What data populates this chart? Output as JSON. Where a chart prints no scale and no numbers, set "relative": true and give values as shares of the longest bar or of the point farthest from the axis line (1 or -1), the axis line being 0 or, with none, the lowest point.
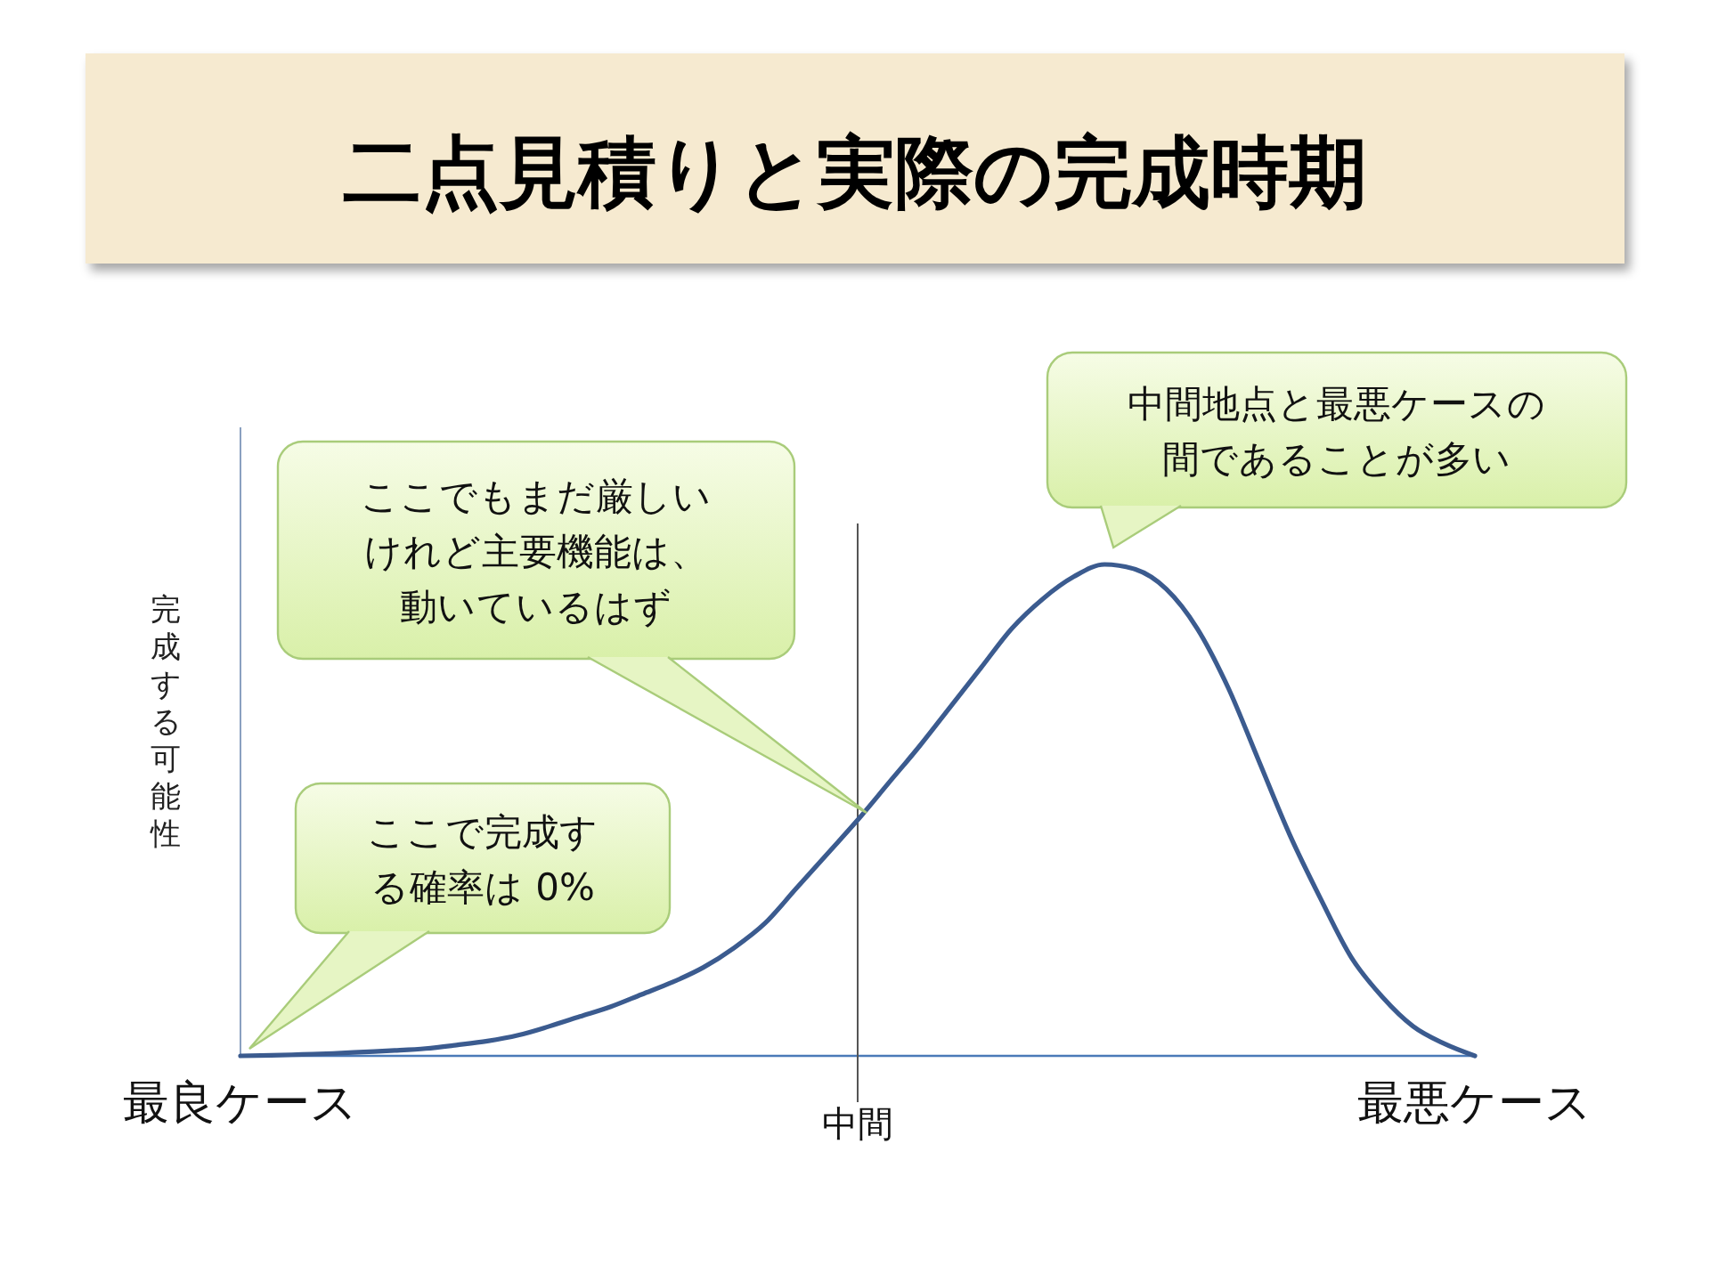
{
  "chart_data": {
    "type": "line",
    "relative": true,
    "title": "二点見積りと実際の完成時期",
    "ylabel": "完成する可能性",
    "categories": [
      "最良ケース",
      null,
      null,
      null,
      null,
      null,
      null,
      null,
      null,
      null,
      null,
      null,
      null,
      null,
      null,
      null,
      null,
      null,
      null,
      null,
      "中間",
      null,
      null,
      null,
      null,
      null,
      null,
      null,
      null,
      null,
      null,
      null,
      null,
      null,
      null,
      null,
      null,
      null,
      null,
      null,
      "最悪ケース"
    ],
    "series": [
      {
        "color": "#3b5b8f",
        "values": [
          0,
          0.001,
          0.003,
          0.005,
          0.008,
          0.011,
          0.015,
          0.022,
          0.03,
          0.042,
          0.06,
          0.08,
          0.1,
          0.125,
          0.15,
          0.18,
          0.22,
          0.27,
          0.34,
          0.41,
          0.48,
          0.555,
          0.63,
          0.71,
          0.79,
          0.87,
          0.93,
          0.975,
          1,
          0.99,
          0.95,
          0.87,
          0.75,
          0.6,
          0.45,
          0.32,
          0.2,
          0.12,
          0.06,
          0.025,
          0
        ]
      }
    ],
    "ref_lines": [
      {
        "axis": "x",
        "value": "中間",
        "color": "#555555"
      }
    ],
    "annotations": [
      "ここで完成する確率は 0%",
      "ここでもまだ厳しいけれど主要機能は、動いているはず",
      "中間地点と最悪ケースの間であることが多い"
    ],
    "marker": "none",
    "line_style": "solid"
  }
}
